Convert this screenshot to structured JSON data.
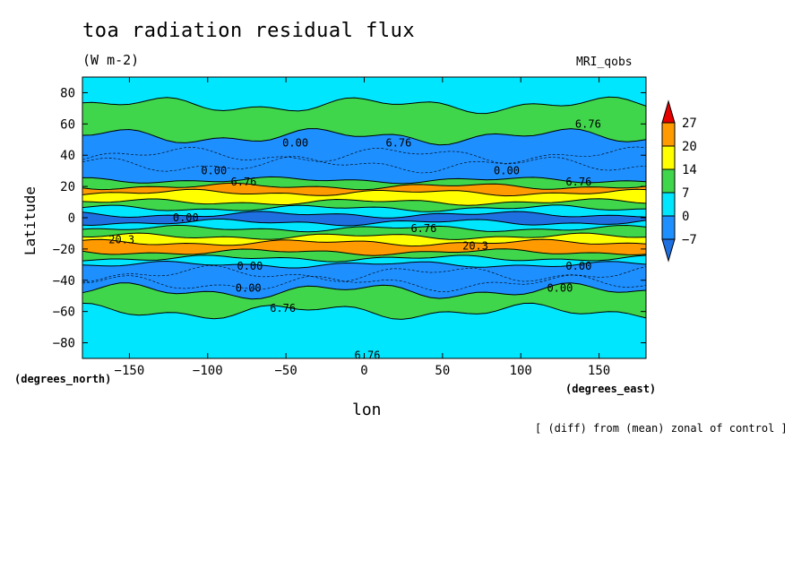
{
  "title": "toa radiation residual flux",
  "units": "(W m-2)",
  "model": "MRI_qobs",
  "footnote": "[ (diff) from (mean) zonal of control ]",
  "chart_data": {
    "type": "heatmap",
    "title": "toa radiation residual flux",
    "xlabel": "lon",
    "ylabel": "Latitude",
    "x_unit_label": "(degrees_east)",
    "y_unit_label": "(degrees_north)",
    "xlim": [
      -180,
      180
    ],
    "ylim": [
      -90,
      90
    ],
    "x_ticks": [
      -150,
      -100,
      -50,
      0,
      50,
      100,
      150
    ],
    "x_tick_labels": [
      "−150",
      "−100",
      "−50",
      "0",
      "50",
      "100",
      "150"
    ],
    "y_ticks": [
      80,
      60,
      40,
      20,
      0,
      -20,
      -40,
      -60,
      -80
    ],
    "y_tick_labels": [
      "80",
      "60",
      "40",
      "20",
      "0",
      "−20",
      "−40",
      "−60",
      "−80"
    ],
    "colorbar": {
      "levels": [
        -7,
        0,
        7,
        14,
        20,
        27
      ],
      "level_labels": [
        "−7",
        "0",
        "7",
        "14",
        "20",
        "27"
      ],
      "colors": [
        "#1e8fff",
        "#00e6ff",
        "#3fd64b",
        "#ffff00",
        "#ff9b00",
        "#e60000"
      ],
      "under_color": "#1e6fe0",
      "over_color": "#e60000"
    },
    "zonal_bands": [
      {
        "lat_from": 90,
        "lat_to": 72,
        "class": 1
      },
      {
        "lat_from": 72,
        "lat_to": 52,
        "class": 2
      },
      {
        "lat_from": 52,
        "lat_to": 24,
        "class": 0
      },
      {
        "lat_from": 24,
        "lat_to": 20,
        "class": 2
      },
      {
        "lat_from": 20,
        "lat_to": 16,
        "class": 4
      },
      {
        "lat_from": 16,
        "lat_to": 10,
        "class": 3
      },
      {
        "lat_from": 10,
        "lat_to": 6,
        "class": 2
      },
      {
        "lat_from": 6,
        "lat_to": 2,
        "class": 1
      },
      {
        "lat_from": 2,
        "lat_to": -3,
        "class": -1
      },
      {
        "lat_from": -3,
        "lat_to": -7,
        "class": 1
      },
      {
        "lat_from": -7,
        "lat_to": -12,
        "class": 2
      },
      {
        "lat_from": -12,
        "lat_to": -16,
        "class": 3
      },
      {
        "lat_from": -16,
        "lat_to": -22,
        "class": 4
      },
      {
        "lat_from": -22,
        "lat_to": -26,
        "class": 2
      },
      {
        "lat_from": -26,
        "lat_to": -30,
        "class": 1
      },
      {
        "lat_from": -30,
        "lat_to": -47,
        "class": 0
      },
      {
        "lat_from": -47,
        "lat_to": -60,
        "class": 2
      },
      {
        "lat_from": -60,
        "lat_to": -90,
        "class": 1
      }
    ],
    "contour_labels": [
      {
        "text": "6.76",
        "lon": 143,
        "lat": 60
      },
      {
        "text": "0.00",
        "lon": -44,
        "lat": 48
      },
      {
        "text": "6.76",
        "lon": 22,
        "lat": 48
      },
      {
        "text": "0.00",
        "lon": -96,
        "lat": 30
      },
      {
        "text": "0.00",
        "lon": 91,
        "lat": 30
      },
      {
        "text": "6.76",
        "lon": -77,
        "lat": 23
      },
      {
        "text": "6.76",
        "lon": 137,
        "lat": 23
      },
      {
        "text": "0.00",
        "lon": -114,
        "lat": 0
      },
      {
        "text": "6.76",
        "lon": 38,
        "lat": -7
      },
      {
        "text": "20.3",
        "lon": 71,
        "lat": -18
      },
      {
        "text": "20.3",
        "lon": -155,
        "lat": -14
      },
      {
        "text": "0.00",
        "lon": -73,
        "lat": -31
      },
      {
        "text": "0.00",
        "lon": 137,
        "lat": -31
      },
      {
        "text": "0.00",
        "lon": -74,
        "lat": -45
      },
      {
        "text": "0.00",
        "lon": 125,
        "lat": -45
      },
      {
        "text": "6.76",
        "lon": -52,
        "lat": -58
      },
      {
        "text": "6.76",
        "lon": 2,
        "lat": -88
      }
    ]
  }
}
